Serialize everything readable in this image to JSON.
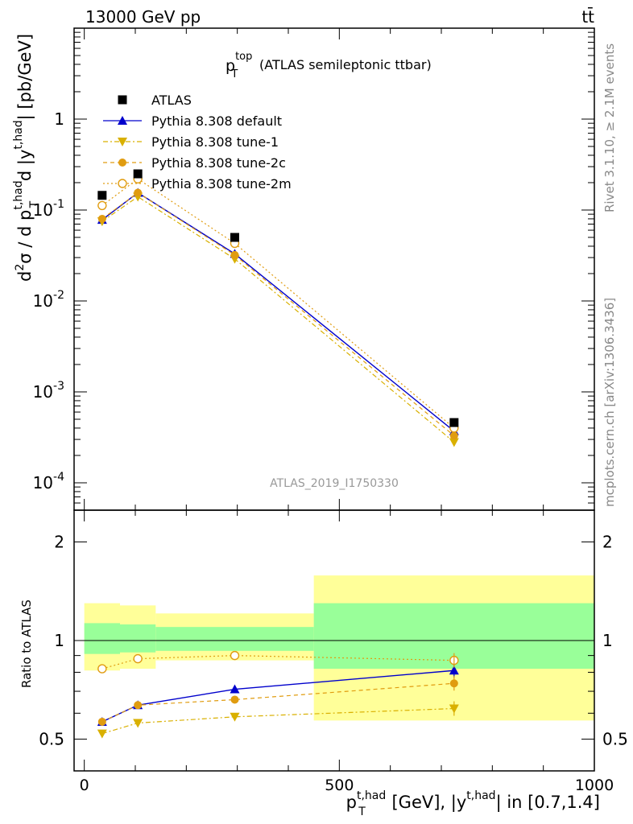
{
  "header": {
    "left": "13000 GeV pp",
    "right": "tt̄"
  },
  "side_labels": {
    "rivet": "Rivet 3.1.10, ≥ 2.1M events",
    "mcplots": "mcplots.cern.ch [arXiv:1306.3436]"
  },
  "chart_data": {
    "type": "line",
    "title_main": "p",
    "title_sup": "top",
    "title_sub": "T",
    "title_rest": "(ATLAS semileptonic ttbar)",
    "watermark": "ATLAS_2019_I1750330",
    "ylabel": "d²σ / d p_T^{t,had} d |y^{t,had}| [pb/GeV]",
    "ylabel_parts": {
      "a": "d",
      "a_sup": "2",
      "b": "σ / d p",
      "b_sup": "t,had",
      "b_sub": "T",
      "c": " d |y",
      "c_sup": "t,had",
      "d": "| [pb/GeV]"
    },
    "ratio_ylabel": "Ratio to ATLAS",
    "xlabel_parts": {
      "a": "p",
      "a_sup": "t,had",
      "a_sub": "T",
      "b": " [GeV], |y",
      "b_sup": "t,had",
      "c": "| in [0.7,1.4]"
    },
    "x_ticks": [
      "0",
      "500",
      "1000"
    ],
    "y_ticks": [
      {
        "base": "10",
        "exp": "-4",
        "v": 0.0001
      },
      {
        "base": "10",
        "exp": "-3",
        "v": 0.001
      },
      {
        "base": "10",
        "exp": "-2",
        "v": 0.01
      },
      {
        "base": "10",
        "exp": "-1",
        "v": 0.1
      },
      {
        "base": "1",
        "exp": "",
        "v": 1
      }
    ],
    "ratio_ticks": [
      "0.5",
      "1",
      "2"
    ],
    "xlim": [
      -20,
      1000
    ],
    "ylim": [
      5e-05,
      10
    ],
    "ratio_ylim": [
      0.4,
      2.5
    ],
    "bins": [
      {
        "lo": 0,
        "hi": 70,
        "x": 35
      },
      {
        "lo": 70,
        "hi": 140,
        "x": 105
      },
      {
        "lo": 140,
        "hi": 450,
        "x": 295
      },
      {
        "lo": 450,
        "hi": 1000,
        "x": 725
      }
    ],
    "atlas": [
      0.145,
      0.25,
      0.05,
      0.00046
    ],
    "band_green": [
      [
        0.91,
        1.13
      ],
      [
        0.92,
        1.12
      ],
      [
        0.93,
        1.1
      ],
      [
        0.82,
        1.3
      ]
    ],
    "band_yellow": [
      [
        0.81,
        1.3
      ],
      [
        0.82,
        1.28
      ],
      [
        0.87,
        1.21
      ],
      [
        0.57,
        1.58
      ]
    ],
    "series": [
      {
        "name": "Pythia 8.308 default",
        "color": "#0000cc",
        "marker": "triangle-up",
        "dash": "",
        "values": [
          0.078,
          0.155,
          0.033,
          0.00037
        ],
        "ratio": [
          0.565,
          0.635,
          0.71,
          0.81
        ]
      },
      {
        "name": "Pythia 8.308 tune-1",
        "color": "#d9b000",
        "marker": "triangle-down",
        "dash": "6,3,2,3",
        "values": [
          0.075,
          0.14,
          0.029,
          0.00028
        ],
        "ratio": [
          0.52,
          0.56,
          0.585,
          0.62
        ]
      },
      {
        "name": "Pythia 8.308 tune-2c",
        "color": "#e09c10",
        "marker": "circle",
        "dash": "5,4",
        "values": [
          0.08,
          0.155,
          0.032,
          0.00033
        ],
        "ratio": [
          0.565,
          0.635,
          0.66,
          0.74
        ]
      },
      {
        "name": "Pythia 8.308 tune-2m",
        "color": "#e09c10",
        "marker": "circle-open",
        "dash": "2,3",
        "values": [
          0.112,
          0.22,
          0.043,
          0.0004
        ],
        "ratio": [
          0.82,
          0.88,
          0.9,
          0.87
        ]
      }
    ],
    "atlas_label": "ATLAS"
  }
}
